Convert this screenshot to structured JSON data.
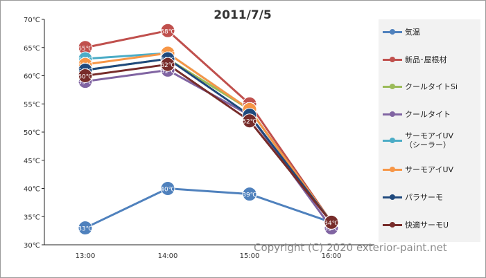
{
  "chart_data": {
    "type": "line",
    "title": "2011/7/5",
    "xlabel": "",
    "ylabel": "",
    "categories": [
      "13:00",
      "14:00",
      "15:00",
      "16:00"
    ],
    "y_ticks": [
      "30℃",
      "35℃",
      "40℃",
      "45℃",
      "50℃",
      "55℃",
      "60℃",
      "65℃",
      "70℃"
    ],
    "ylim": [
      30,
      70
    ],
    "grid": false,
    "legend_position": "right",
    "series": [
      {
        "name": "気温",
        "color": "#4f81bd",
        "values": [
          33,
          40,
          39,
          34
        ],
        "labels": [
          "33℃",
          "40℃",
          "39℃",
          ""
        ]
      },
      {
        "name": "新品･屋根材",
        "color": "#c0504d",
        "values": [
          65,
          68,
          55,
          34
        ],
        "labels": [
          "65℃",
          "68℃",
          "55℃",
          ""
        ]
      },
      {
        "name": "クールタイトSi",
        "color": "#9bbb59",
        "values": [
          61,
          63,
          54,
          34
        ],
        "labels": [
          "",
          "",
          "",
          ""
        ]
      },
      {
        "name": "クールタイト",
        "color": "#8064a2",
        "values": [
          59,
          61,
          53,
          33
        ],
        "labels": [
          "59℃",
          "61℃",
          "",
          "33℃"
        ]
      },
      {
        "name": "サーモアイUV\n（シーラー）",
        "color": "#4bacc6",
        "values": [
          63,
          64,
          54,
          34
        ],
        "labels": [
          "63℃",
          "64℃",
          "",
          ""
        ]
      },
      {
        "name": "サーモアイUV",
        "color": "#f79646",
        "values": [
          62,
          64,
          54,
          34
        ],
        "labels": [
          "62℃",
          "64℃",
          "",
          ""
        ]
      },
      {
        "name": "パラサーモ",
        "color": "#1f497d",
        "values": [
          61,
          63,
          53,
          34
        ],
        "labels": [
          "61℃",
          "63℃",
          "",
          ""
        ]
      },
      {
        "name": "快適サーモU",
        "color": "#772c2a",
        "values": [
          60,
          62,
          52,
          34
        ],
        "labels": [
          "60℃",
          "62℃",
          "52℃",
          "34℃"
        ]
      }
    ]
  },
  "watermark": "Copyright (C) 2020 exterior-paint.net"
}
